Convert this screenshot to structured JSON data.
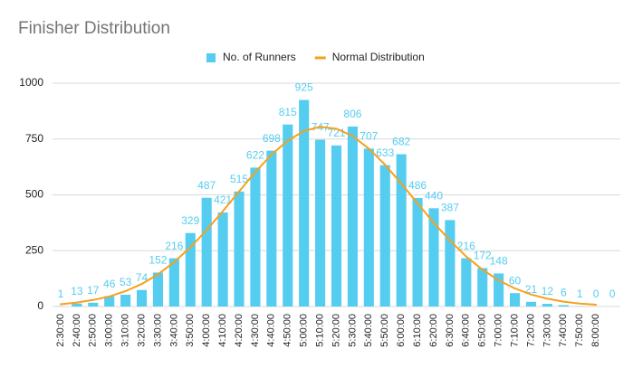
{
  "chart_data": {
    "type": "bar",
    "title": "Finisher Distribution",
    "categories": [
      "2:30:00",
      "2:40:00",
      "2:50:00",
      "3:00:00",
      "3:10:00",
      "3:20:00",
      "3:30:00",
      "3:40:00",
      "3:50:00",
      "4:00:00",
      "4:10:00",
      "4:20:00",
      "4:30:00",
      "4:40:00",
      "4:50:00",
      "5:00:00",
      "5:10:00",
      "5:20:00",
      "5:30:00",
      "5:40:00",
      "5:50:00",
      "6:00:00",
      "6:10:00",
      "6:20:00",
      "6:30:00",
      "6:40:00",
      "6:50:00",
      "7:00:00",
      "7:10:00",
      "7:20:00",
      "7:30:00",
      "7:40:00",
      "7:50:00",
      "8:00:00",
      null
    ],
    "series": [
      {
        "name": "No. of Runners",
        "type": "bar",
        "color": "#55cdf0",
        "data_labels": true,
        "values": [
          1,
          13,
          17,
          46,
          53,
          74,
          152,
          216,
          329,
          487,
          421,
          515,
          622,
          698,
          815,
          925,
          747,
          721,
          806,
          707,
          633,
          682,
          486,
          440,
          387,
          216,
          172,
          148,
          60,
          21,
          12,
          6,
          1,
          0,
          0
        ]
      },
      {
        "name": "Normal Distribution",
        "type": "line",
        "color": "#f5a11c",
        "values": [
          10,
          18,
          29,
          45,
          69,
          101,
          144,
          199,
          265,
          342,
          427,
          515,
          602,
          680,
          743,
          786,
          805,
          796,
          763,
          707,
          635,
          550,
          462,
          375,
          295,
          224,
          165,
          117,
          81,
          54,
          35,
          22,
          13,
          8,
          null
        ]
      }
    ],
    "ylim": [
      0,
      1000
    ],
    "yticks": [
      0,
      250,
      500,
      750,
      1000
    ],
    "grid": true,
    "legend": "top"
  }
}
